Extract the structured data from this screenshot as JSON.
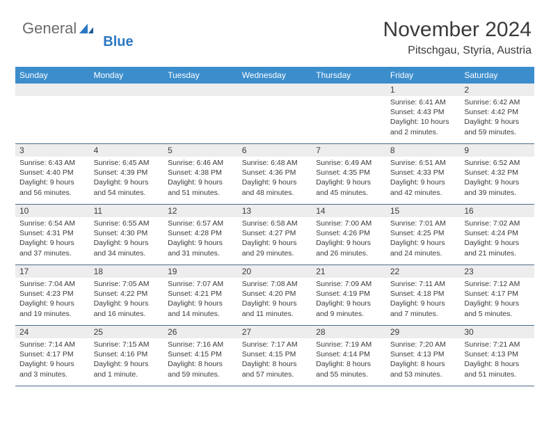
{
  "logo": {
    "general": "General",
    "blue": "Blue",
    "icon_color": "#2b78c4"
  },
  "header": {
    "month_title": "November 2024",
    "location": "Pitschgau, Styria, Austria"
  },
  "colors": {
    "header_bg": "#3c8dcc",
    "header_text": "#ffffff",
    "daynum_bg": "#ededed",
    "border": "#4a6a8a",
    "logo_gray": "#6b6b6b",
    "logo_blue": "#2b78c4",
    "text": "#3a3a3a"
  },
  "day_headers": [
    "Sunday",
    "Monday",
    "Tuesday",
    "Wednesday",
    "Thursday",
    "Friday",
    "Saturday"
  ],
  "weeks": [
    [
      null,
      null,
      null,
      null,
      null,
      {
        "n": "1",
        "sr": "6:41 AM",
        "ss": "4:43 PM",
        "dl": "10 hours and 2 minutes."
      },
      {
        "n": "2",
        "sr": "6:42 AM",
        "ss": "4:42 PM",
        "dl": "9 hours and 59 minutes."
      }
    ],
    [
      {
        "n": "3",
        "sr": "6:43 AM",
        "ss": "4:40 PM",
        "dl": "9 hours and 56 minutes."
      },
      {
        "n": "4",
        "sr": "6:45 AM",
        "ss": "4:39 PM",
        "dl": "9 hours and 54 minutes."
      },
      {
        "n": "5",
        "sr": "6:46 AM",
        "ss": "4:38 PM",
        "dl": "9 hours and 51 minutes."
      },
      {
        "n": "6",
        "sr": "6:48 AM",
        "ss": "4:36 PM",
        "dl": "9 hours and 48 minutes."
      },
      {
        "n": "7",
        "sr": "6:49 AM",
        "ss": "4:35 PM",
        "dl": "9 hours and 45 minutes."
      },
      {
        "n": "8",
        "sr": "6:51 AM",
        "ss": "4:33 PM",
        "dl": "9 hours and 42 minutes."
      },
      {
        "n": "9",
        "sr": "6:52 AM",
        "ss": "4:32 PM",
        "dl": "9 hours and 39 minutes."
      }
    ],
    [
      {
        "n": "10",
        "sr": "6:54 AM",
        "ss": "4:31 PM",
        "dl": "9 hours and 37 minutes."
      },
      {
        "n": "11",
        "sr": "6:55 AM",
        "ss": "4:30 PM",
        "dl": "9 hours and 34 minutes."
      },
      {
        "n": "12",
        "sr": "6:57 AM",
        "ss": "4:28 PM",
        "dl": "9 hours and 31 minutes."
      },
      {
        "n": "13",
        "sr": "6:58 AM",
        "ss": "4:27 PM",
        "dl": "9 hours and 29 minutes."
      },
      {
        "n": "14",
        "sr": "7:00 AM",
        "ss": "4:26 PM",
        "dl": "9 hours and 26 minutes."
      },
      {
        "n": "15",
        "sr": "7:01 AM",
        "ss": "4:25 PM",
        "dl": "9 hours and 24 minutes."
      },
      {
        "n": "16",
        "sr": "7:02 AM",
        "ss": "4:24 PM",
        "dl": "9 hours and 21 minutes."
      }
    ],
    [
      {
        "n": "17",
        "sr": "7:04 AM",
        "ss": "4:23 PM",
        "dl": "9 hours and 19 minutes."
      },
      {
        "n": "18",
        "sr": "7:05 AM",
        "ss": "4:22 PM",
        "dl": "9 hours and 16 minutes."
      },
      {
        "n": "19",
        "sr": "7:07 AM",
        "ss": "4:21 PM",
        "dl": "9 hours and 14 minutes."
      },
      {
        "n": "20",
        "sr": "7:08 AM",
        "ss": "4:20 PM",
        "dl": "9 hours and 11 minutes."
      },
      {
        "n": "21",
        "sr": "7:09 AM",
        "ss": "4:19 PM",
        "dl": "9 hours and 9 minutes."
      },
      {
        "n": "22",
        "sr": "7:11 AM",
        "ss": "4:18 PM",
        "dl": "9 hours and 7 minutes."
      },
      {
        "n": "23",
        "sr": "7:12 AM",
        "ss": "4:17 PM",
        "dl": "9 hours and 5 minutes."
      }
    ],
    [
      {
        "n": "24",
        "sr": "7:14 AM",
        "ss": "4:17 PM",
        "dl": "9 hours and 3 minutes."
      },
      {
        "n": "25",
        "sr": "7:15 AM",
        "ss": "4:16 PM",
        "dl": "9 hours and 1 minute."
      },
      {
        "n": "26",
        "sr": "7:16 AM",
        "ss": "4:15 PM",
        "dl": "8 hours and 59 minutes."
      },
      {
        "n": "27",
        "sr": "7:17 AM",
        "ss": "4:15 PM",
        "dl": "8 hours and 57 minutes."
      },
      {
        "n": "28",
        "sr": "7:19 AM",
        "ss": "4:14 PM",
        "dl": "8 hours and 55 minutes."
      },
      {
        "n": "29",
        "sr": "7:20 AM",
        "ss": "4:13 PM",
        "dl": "8 hours and 53 minutes."
      },
      {
        "n": "30",
        "sr": "7:21 AM",
        "ss": "4:13 PM",
        "dl": "8 hours and 51 minutes."
      }
    ]
  ],
  "labels": {
    "sunrise": "Sunrise:",
    "sunset": "Sunset:",
    "daylight": "Daylight:"
  }
}
